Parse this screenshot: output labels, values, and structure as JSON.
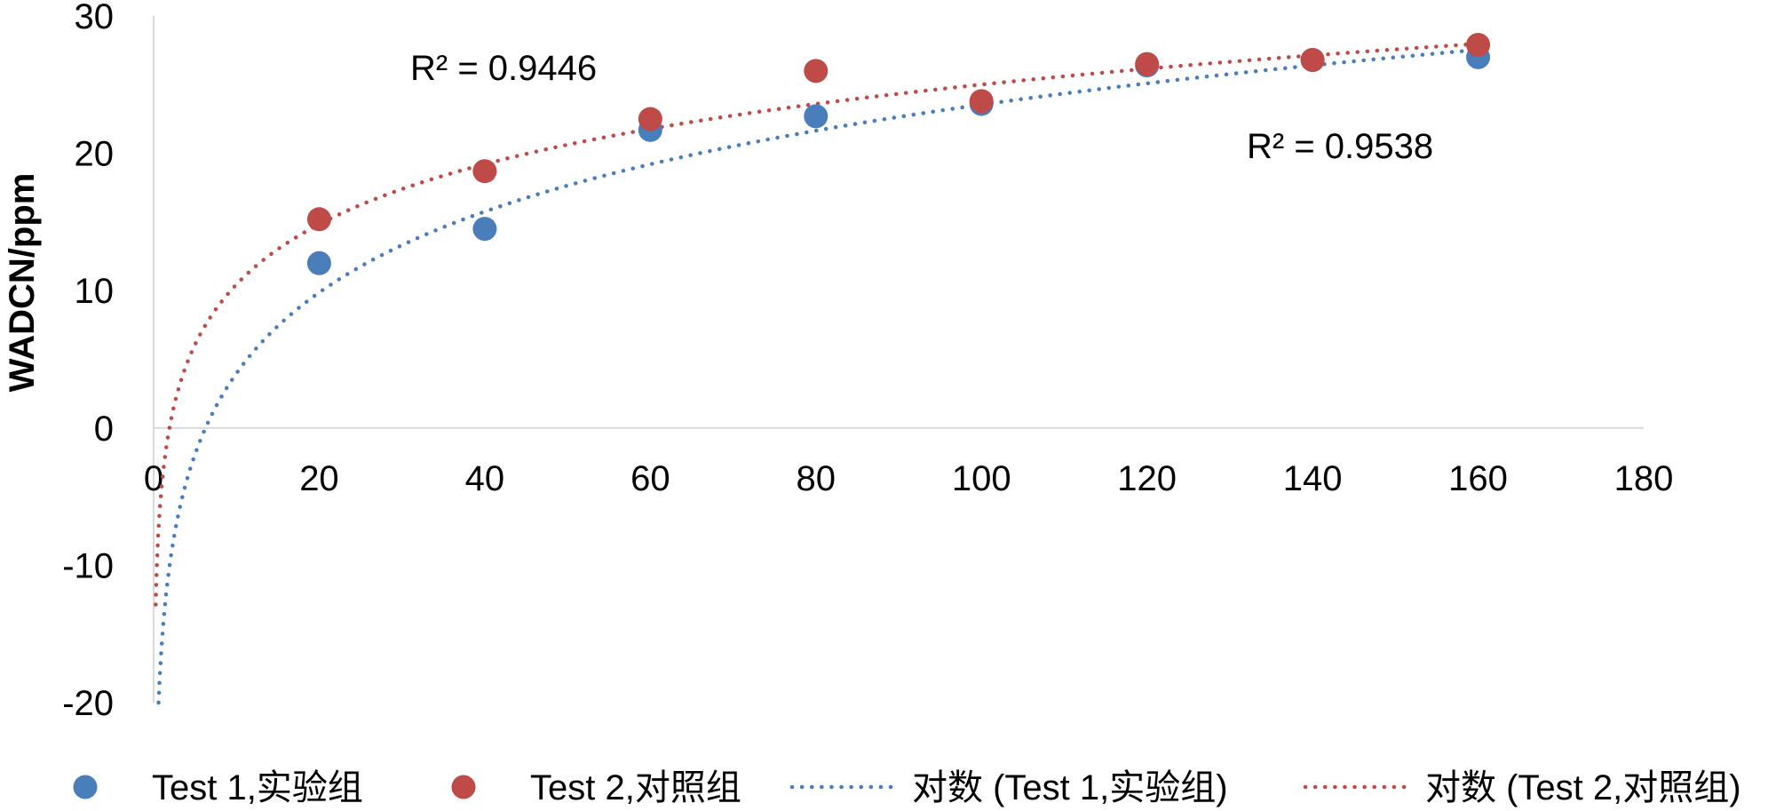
{
  "chart_data": {
    "type": "scatter",
    "xlabel": "",
    "ylabel": "WADCN/ppm",
    "xlim": [
      0,
      180
    ],
    "ylim": [
      -20,
      30
    ],
    "x_ticks": [
      "0",
      "20",
      "40",
      "60",
      "80",
      "100",
      "120",
      "140",
      "160",
      "180"
    ],
    "y_ticks": [
      "-20",
      "-10",
      "0",
      "10",
      "20",
      "30"
    ],
    "grid": false,
    "legend_position": "bottom",
    "series": [
      {
        "name": "Test 1,实验组",
        "color": "#4a7ebb",
        "x": [
          20,
          40,
          60,
          80,
          100,
          120,
          140,
          160
        ],
        "y": [
          12.0,
          14.5,
          21.7,
          22.7,
          23.6,
          26.4,
          26.8,
          27.0
        ],
        "trend": {
          "type": "log",
          "legend_label": "对数 (Test 1,实验组)",
          "a": 8.5,
          "b": -15.6,
          "r2_label": "R² = 0.9538"
        }
      },
      {
        "name": "Test 2,对照组",
        "color": "#be4b48",
        "x": [
          20,
          40,
          60,
          80,
          100,
          120,
          140,
          160
        ],
        "y": [
          15.2,
          18.7,
          22.5,
          26.0,
          23.8,
          26.5,
          26.8,
          27.9
        ],
        "trend": {
          "type": "log",
          "legend_label": "对数 (Test 2,对照组)",
          "a": 6.32,
          "b": -4.1,
          "r2_label": "R² = 0.9446"
        }
      }
    ]
  }
}
